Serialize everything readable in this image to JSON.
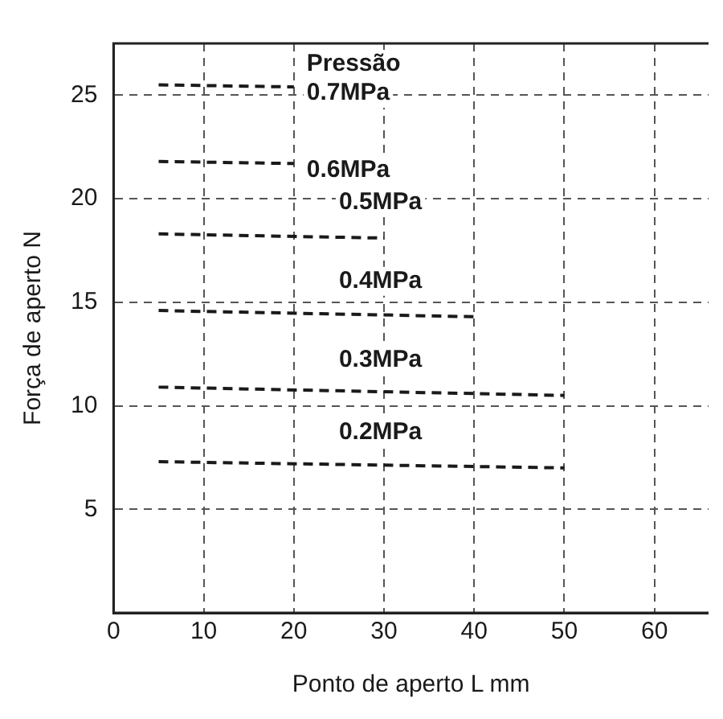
{
  "chart_data": {
    "type": "line",
    "xlabel": "Ponto de aperto L mm",
    "ylabel": "Força de aperto N",
    "xlim": [
      0,
      66
    ],
    "ylim": [
      0,
      27.5
    ],
    "xticks": [
      0,
      10,
      20,
      30,
      40,
      50,
      60
    ],
    "yticks": [
      {
        "value": 0,
        "label": null
      },
      5,
      10,
      15,
      20,
      25
    ],
    "grid": true,
    "legend": false,
    "line_style": "dashed",
    "marker": "none",
    "annotations": [
      "Pressão"
    ],
    "series": [
      {
        "name": "0.7MPa",
        "color": "#1a1a1a",
        "x": [
          5,
          20
        ],
        "values": [
          25.5,
          25.4
        ]
      },
      {
        "name": "0.6MPa",
        "color": "#1a1a1a",
        "x": [
          5,
          20
        ],
        "values": [
          21.8,
          21.7
        ]
      },
      {
        "name": "0.5MPa",
        "color": "#1a1a1a",
        "x": [
          5,
          30
        ],
        "values": [
          18.3,
          18.1
        ]
      },
      {
        "name": "0.4MPa",
        "color": "#1a1a1a",
        "x": [
          5,
          40
        ],
        "values": [
          14.6,
          14.3
        ]
      },
      {
        "name": "0.3MPa",
        "color": "#1a1a1a",
        "x": [
          5,
          50
        ],
        "values": [
          10.9,
          10.5
        ]
      },
      {
        "name": "0.2MPa",
        "color": "#1a1a1a",
        "x": [
          5,
          50
        ],
        "values": [
          7.3,
          7.0
        ]
      }
    ]
  }
}
